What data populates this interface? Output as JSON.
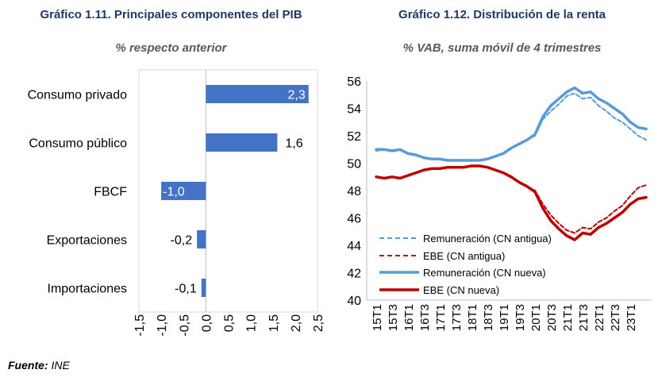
{
  "chart1": {
    "title": "Gráfico 1.11. Principales componentes del PIB",
    "subtitle": "% respecto anterior"
  },
  "chart2": {
    "title": "Gráfico 1.12. Distribución de la renta",
    "subtitle": "% VAB, suma móvil de 4 trimestres"
  },
  "source": {
    "label": "Fuente:",
    "value": "INE"
  },
  "colors": {
    "blue": "#4472c4",
    "light_blue": "#5b9bd5",
    "dark_red": "#c00000",
    "title": "#1f3864"
  },
  "chart_data": [
    {
      "type": "bar",
      "orientation": "horizontal",
      "categories": [
        "Consumo privado",
        "Consumo público",
        "FBCF",
        "Exportaciones",
        "Importaciones"
      ],
      "values": [
        2.3,
        1.6,
        -1.0,
        -0.2,
        -0.1
      ],
      "labels": [
        "2,3",
        "1,6",
        "-1,0",
        "-0,2",
        "-0,1"
      ],
      "xlim": [
        -1.5,
        2.5
      ],
      "x_ticks": [
        "-1,5",
        "-1,0",
        "-0,5",
        "0,0",
        "0,5",
        "1,0",
        "1,5",
        "2,0",
        "2,5"
      ],
      "grid": false
    },
    {
      "type": "line",
      "x": [
        "15T1",
        "15T2",
        "15T3",
        "15T4",
        "16T1",
        "16T2",
        "16T3",
        "16T4",
        "17T1",
        "17T2",
        "17T3",
        "17T4",
        "18T1",
        "18T2",
        "18T3",
        "18T4",
        "19T1",
        "19T2",
        "19T3",
        "19T4",
        "20T1",
        "20T2",
        "20T3",
        "20T4",
        "21T1",
        "21T2",
        "21T3",
        "21T4",
        "22T1",
        "22T2",
        "22T3",
        "22T4",
        "23T1",
        "23T2",
        "23T3"
      ],
      "x_tick_labels": [
        "15T1",
        "15T3",
        "16T1",
        "16T3",
        "17T1",
        "17T3",
        "18T1",
        "18T3",
        "19T1",
        "19T3",
        "20T1",
        "20T3",
        "21T1",
        "21T3",
        "22T1",
        "22T3",
        "23T1"
      ],
      "ylim": [
        40,
        56
      ],
      "y_ticks": [
        "40",
        "42",
        "44",
        "46",
        "48",
        "50",
        "52",
        "54",
        "56"
      ],
      "legend_position": "bottom-left",
      "grid": false,
      "series": [
        {
          "name": "Remuneración (CN antigua)",
          "style": "dashed",
          "color": "#5b9bd5",
          "values": [
            50.9,
            51.0,
            50.9,
            51.0,
            50.7,
            50.6,
            50.4,
            50.3,
            50.3,
            50.2,
            50.2,
            50.2,
            50.2,
            50.2,
            50.3,
            50.5,
            50.7,
            51.1,
            51.4,
            51.7,
            52.0,
            53.2,
            53.8,
            54.3,
            54.9,
            55.1,
            54.7,
            54.8,
            54.2,
            53.8,
            53.3,
            53.0,
            52.5,
            52.0,
            51.7
          ]
        },
        {
          "name": "EBE (CN antigua)",
          "style": "dashed",
          "color": "#c00000",
          "values": [
            49.0,
            48.9,
            49.0,
            48.9,
            49.1,
            49.3,
            49.5,
            49.6,
            49.6,
            49.7,
            49.7,
            49.7,
            49.8,
            49.8,
            49.7,
            49.5,
            49.3,
            49.0,
            48.6,
            48.3,
            48.0,
            47.0,
            46.2,
            45.6,
            45.1,
            44.9,
            45.3,
            45.2,
            45.7,
            46.0,
            46.5,
            46.9,
            47.6,
            48.2,
            48.4
          ]
        },
        {
          "name": "Remuneración (CN nueva)",
          "style": "solid",
          "color": "#5b9bd5",
          "values": [
            51.0,
            51.0,
            50.9,
            51.0,
            50.7,
            50.6,
            50.4,
            50.3,
            50.3,
            50.2,
            50.2,
            50.2,
            50.2,
            50.2,
            50.3,
            50.5,
            50.7,
            51.1,
            51.4,
            51.7,
            52.1,
            53.4,
            54.2,
            54.7,
            55.2,
            55.5,
            55.1,
            55.2,
            54.7,
            54.4,
            54.0,
            53.6,
            53.0,
            52.6,
            52.5
          ]
        },
        {
          "name": "EBE (CN nueva)",
          "style": "solid",
          "color": "#c00000",
          "values": [
            49.0,
            48.9,
            49.0,
            48.9,
            49.1,
            49.3,
            49.5,
            49.6,
            49.6,
            49.7,
            49.7,
            49.7,
            49.8,
            49.8,
            49.7,
            49.5,
            49.3,
            49.0,
            48.6,
            48.3,
            47.9,
            46.7,
            45.8,
            45.2,
            44.7,
            44.4,
            44.9,
            44.8,
            45.3,
            45.6,
            46.0,
            46.4,
            47.0,
            47.4,
            47.5
          ]
        }
      ]
    }
  ]
}
